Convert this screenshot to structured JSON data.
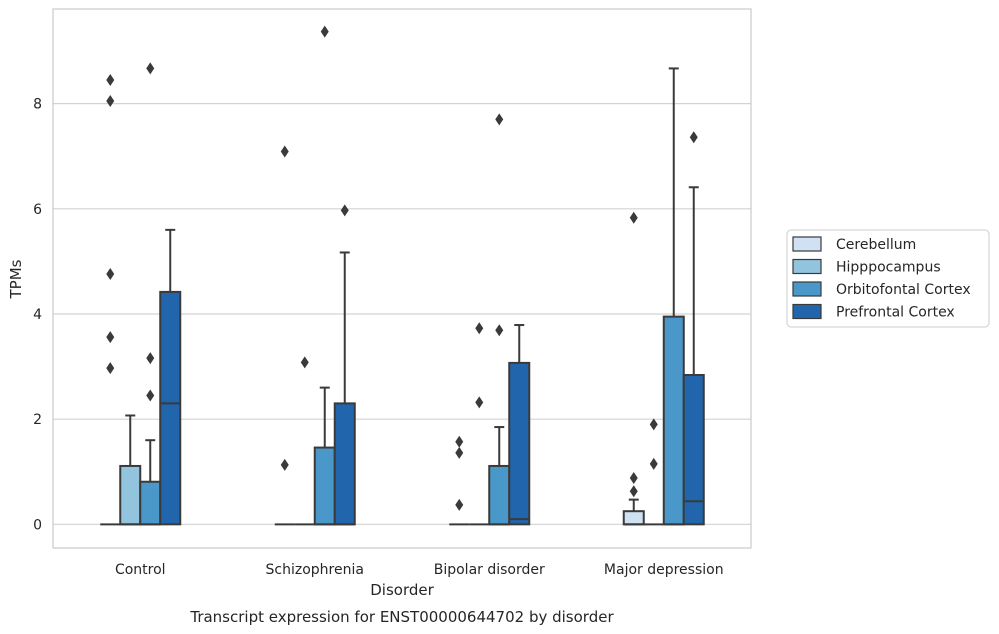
{
  "chart_data": {
    "type": "box",
    "xlabel": "Disorder",
    "ylabel": "TPMs",
    "caption": "Transcript expression for ENST00000644702 by disorder",
    "ylim": [
      -0.45,
      9.8
    ],
    "yticks": [
      0,
      2,
      4,
      6,
      8
    ],
    "grid": true,
    "legend_position": "right",
    "categories": [
      "Control",
      "Schizophrenia",
      "Bipolar disorder",
      "Major depression"
    ],
    "series": [
      {
        "name": "Cerebellum",
        "color": "#cfe1f2",
        "boxes": [
          {
            "q1": 0,
            "median": 0,
            "q3": 0,
            "whisker_low": 0,
            "whisker_high": 0,
            "outliers": [
              2.97,
              3.56,
              4.76,
              8.05,
              8.45
            ]
          },
          {
            "q1": 0,
            "median": 0,
            "q3": 0,
            "whisker_low": 0,
            "whisker_high": 0,
            "outliers": [
              1.13,
              7.09
            ]
          },
          {
            "q1": 0,
            "median": 0,
            "q3": 0,
            "whisker_low": 0,
            "whisker_high": 0,
            "outliers": [
              0.37,
              1.36,
              1.57
            ]
          },
          {
            "q1": 0,
            "median": 0,
            "q3": 0.25,
            "whisker_low": 0,
            "whisker_high": 0.47,
            "outliers": [
              0.63,
              0.88,
              5.83
            ]
          }
        ]
      },
      {
        "name": "Hipppocampus",
        "color": "#93c4de",
        "boxes": [
          {
            "q1": 0,
            "median": 0,
            "q3": 1.11,
            "whisker_low": 0,
            "whisker_high": 2.07,
            "outliers": []
          },
          {
            "q1": 0,
            "median": 0,
            "q3": 0,
            "whisker_low": 0,
            "whisker_high": 0,
            "outliers": [
              3.08
            ]
          },
          {
            "q1": 0,
            "median": 0,
            "q3": 0,
            "whisker_low": 0,
            "whisker_high": 0,
            "outliers": [
              2.32,
              3.73
            ]
          },
          {
            "q1": 0,
            "median": 0,
            "q3": 0,
            "whisker_low": 0,
            "whisker_high": 0,
            "outliers": [
              1.15,
              1.9
            ]
          }
        ]
      },
      {
        "name": "Orbitofontal Cortex",
        "color": "#4a98c9",
        "boxes": [
          {
            "q1": 0,
            "median": 0,
            "q3": 0.81,
            "whisker_low": 0,
            "whisker_high": 1.6,
            "outliers": [
              2.45,
              3.16,
              8.67
            ]
          },
          {
            "q1": 0,
            "median": 0,
            "q3": 1.46,
            "whisker_low": 0,
            "whisker_high": 2.6,
            "outliers": [
              9.37
            ]
          },
          {
            "q1": 0,
            "median": 0,
            "q3": 1.11,
            "whisker_low": 0,
            "whisker_high": 1.85,
            "outliers": [
              3.69,
              7.7
            ]
          },
          {
            "q1": 0,
            "median": 0,
            "q3": 3.95,
            "whisker_low": 0,
            "whisker_high": 8.67,
            "outliers": []
          }
        ]
      },
      {
        "name": "Prefrontal Cortex",
        "color": "#2166ac",
        "boxes": [
          {
            "q1": 0,
            "median": 2.3,
            "q3": 4.42,
            "whisker_low": 0,
            "whisker_high": 5.6,
            "outliers": []
          },
          {
            "q1": 0,
            "median": 0,
            "q3": 2.3,
            "whisker_low": 0,
            "whisker_high": 5.17,
            "outliers": [
              5.97
            ]
          },
          {
            "q1": 0,
            "median": 0.1,
            "q3": 3.07,
            "whisker_low": 0,
            "whisker_high": 3.79,
            "outliers": []
          },
          {
            "q1": 0,
            "median": 0.44,
            "q3": 2.84,
            "whisker_low": 0,
            "whisker_high": 6.41,
            "outliers": [
              7.36
            ]
          }
        ]
      }
    ]
  }
}
